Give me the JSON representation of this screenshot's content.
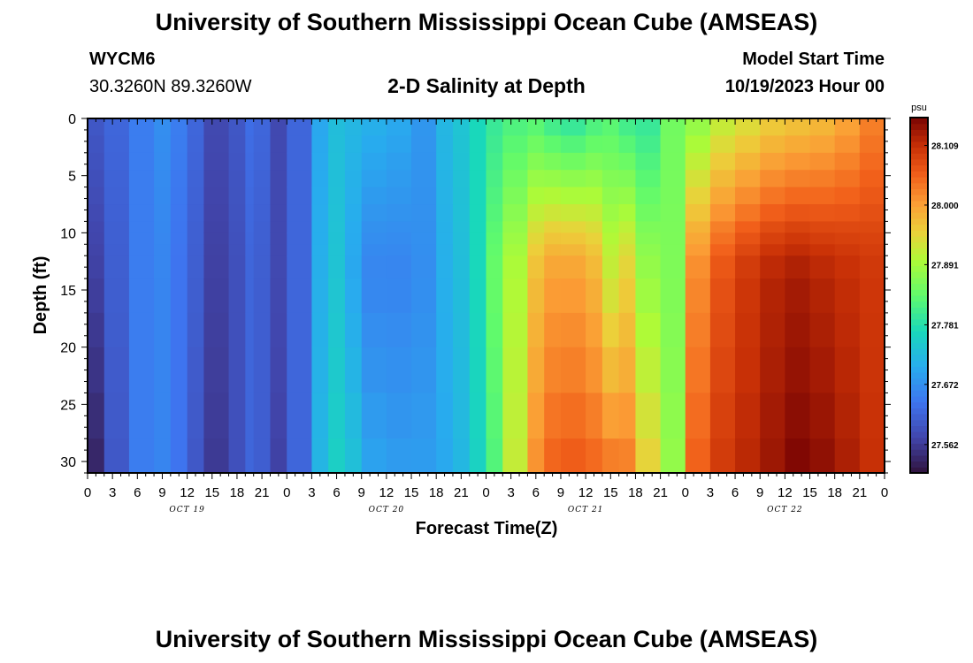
{
  "page": {
    "title": "University of Southern Mississippi Ocean Cube (AMSEAS)",
    "footer_title": "University of Southern Mississippi Ocean Cube (AMSEAS)"
  },
  "station": {
    "id": "WYCM6",
    "coords": "30.3260N  89.3260W"
  },
  "model": {
    "start_label": "Model Start Time",
    "start_value": "10/19/2023 Hour 00"
  },
  "chart_data": {
    "type": "heatmap",
    "title": "2-D Salinity at Depth",
    "xlabel": "Forecast Time(Z)",
    "ylabel": "Depth (ft)",
    "x_tick_labels": [
      "0",
      "3",
      "6",
      "9",
      "12",
      "15",
      "18",
      "21",
      "0",
      "3",
      "6",
      "9",
      "12",
      "15",
      "18",
      "21",
      "0",
      "3",
      "6",
      "9",
      "12",
      "15",
      "18",
      "21",
      "0",
      "3",
      "6",
      "9",
      "12",
      "15",
      "18",
      "21",
      "0"
    ],
    "day_labels": [
      "OCT 19",
      "OCT 20",
      "OCT 21",
      "OCT 22"
    ],
    "y_ticks": [
      0,
      5,
      10,
      15,
      20,
      25,
      30
    ],
    "ylim": [
      0,
      31
    ],
    "x_hours_range": [
      0,
      96
    ],
    "colorbar": {
      "unit": "psu",
      "ticks": [
        27.562,
        27.672,
        27.781,
        27.891,
        28.0,
        28.109
      ],
      "range": [
        27.51,
        28.16
      ]
    },
    "depth_levels_ft": [
      0,
      1.5,
      3,
      4.5,
      6,
      7.5,
      9,
      10,
      11,
      12,
      14,
      17,
      20,
      24,
      28,
      31
    ],
    "profile_hours": [
      0,
      2,
      5,
      8,
      10,
      12,
      14,
      17,
      19,
      20,
      22,
      24,
      27,
      29,
      31,
      33,
      36,
      39,
      42,
      44,
      46,
      48,
      50,
      53,
      55,
      57,
      60,
      62,
      64,
      66,
      69,
      72,
      75,
      78,
      81,
      84,
      87,
      90,
      93,
      96
    ],
    "salinity_surface_psu": [
      27.6,
      27.62,
      27.65,
      27.67,
      27.65,
      27.62,
      27.58,
      27.6,
      27.63,
      27.62,
      27.58,
      27.62,
      27.7,
      27.73,
      27.72,
      27.71,
      27.7,
      27.68,
      27.72,
      27.74,
      27.77,
      27.8,
      27.82,
      27.83,
      27.81,
      27.8,
      27.82,
      27.83,
      27.81,
      27.8,
      27.85,
      27.88,
      27.92,
      27.94,
      27.96,
      27.97,
      27.98,
      28.0,
      28.03,
      28.05
    ],
    "salinity_bottom_psu": [
      27.53,
      27.6,
      27.65,
      27.66,
      27.64,
      27.6,
      27.56,
      27.59,
      27.62,
      27.61,
      27.57,
      27.62,
      27.72,
      27.76,
      27.74,
      27.7,
      27.69,
      27.69,
      27.7,
      27.72,
      27.76,
      27.82,
      27.92,
      28.02,
      28.06,
      28.07,
      28.06,
      28.05,
      28.04,
      27.96,
      27.88,
      28.06,
      28.1,
      28.12,
      28.14,
      28.16,
      28.15,
      28.13,
      28.11,
      28.09
    ],
    "salinity_midlow_psu": [
      27.57,
      27.61,
      27.65,
      27.66,
      27.64,
      27.61,
      27.57,
      27.59,
      27.62,
      27.61,
      27.58,
      27.62,
      27.71,
      27.74,
      27.7,
      27.66,
      27.66,
      27.67,
      27.71,
      27.73,
      27.77,
      27.84,
      27.9,
      27.97,
      28.0,
      28.0,
      27.98,
      27.92,
      27.95,
      27.88,
      27.86,
      28.02,
      28.07,
      28.1,
      28.12,
      28.13,
      28.12,
      28.11,
      28.1,
      28.08
    ]
  }
}
